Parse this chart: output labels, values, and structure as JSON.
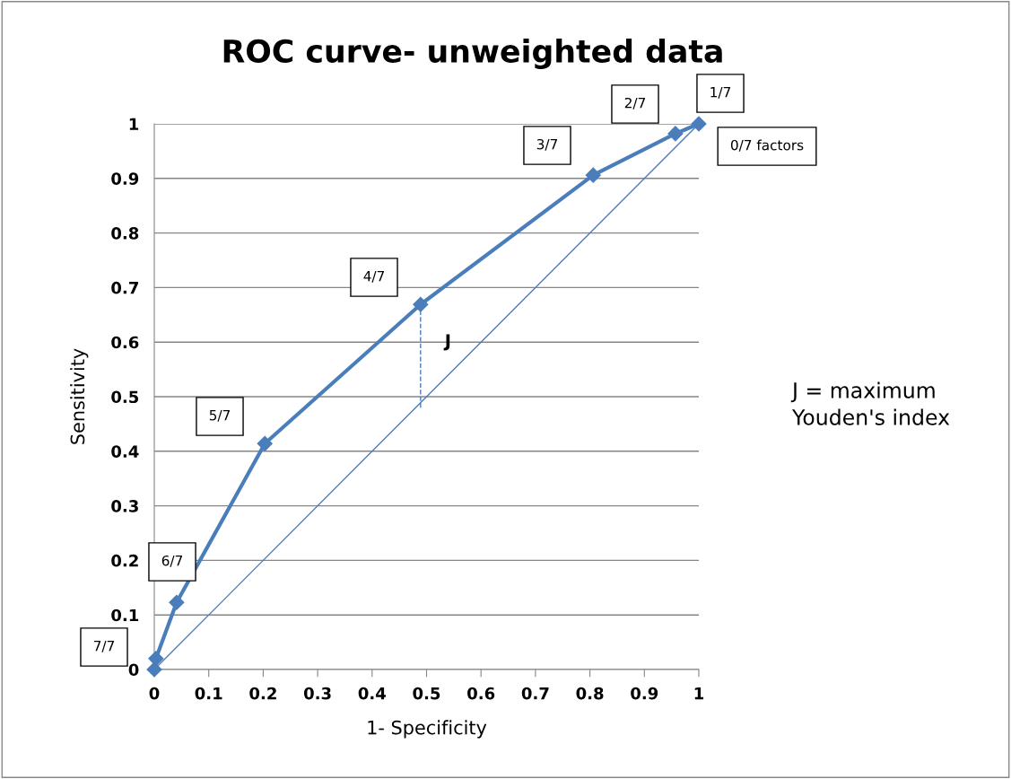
{
  "chart_data": {
    "type": "line",
    "title": "ROC curve- unweighted data",
    "xlabel": "1- Specificity",
    "ylabel": "Sensitivity",
    "series": [
      {
        "color": "#4a7ebb",
        "x": [
          0,
          0.003,
          0.041,
          0.203,
          0.489,
          0.806,
          0.957,
          1
        ],
        "values": [
          0,
          0.02,
          0.123,
          0.414,
          0.669,
          0.906,
          0.982,
          1
        ],
        "marker": "diamond",
        "line_style": "solid"
      },
      {
        "color": "#4a7ebb",
        "x": [
          0,
          1
        ],
        "values": [
          0,
          1
        ],
        "marker": "none",
        "line_style": "solid"
      },
      {
        "color": "#4a7ebb",
        "x": [
          0.489,
          0.489
        ],
        "values": [
          0.48,
          0.669
        ],
        "marker": "none",
        "line_style": "dashed"
      }
    ],
    "xlim": [
      0,
      1
    ],
    "ylim": [
      0,
      1
    ],
    "xticks": [
      0,
      0.1,
      0.2,
      0.3,
      0.4,
      0.5,
      0.6,
      0.7,
      0.8,
      0.9,
      1
    ],
    "yticks": [
      0,
      0.1,
      0.2,
      0.3,
      0.4,
      0.5,
      0.6,
      0.7,
      0.8,
      0.9,
      1
    ],
    "grid": "y",
    "legend": false,
    "annotations": [
      "7/7",
      "6/7",
      "5/7",
      "4/7",
      "3/7",
      "2/7",
      "1/7",
      "0/7 factors",
      {
        "text": "J",
        "x": 0.489,
        "y": 0.6
      },
      "J = maximum\nYouden's index"
    ]
  }
}
